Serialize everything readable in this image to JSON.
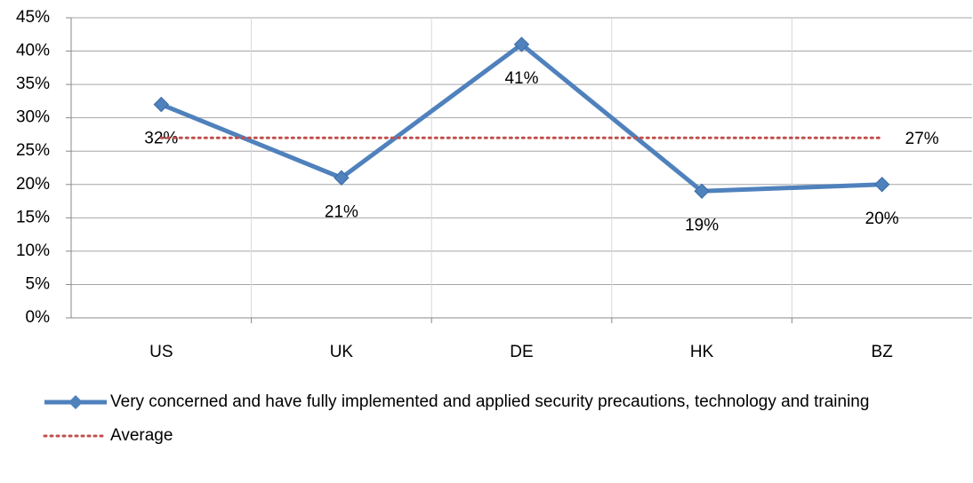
{
  "chart_data": {
    "type": "line",
    "categories": [
      "US",
      "UK",
      "DE",
      "HK",
      "BZ"
    ],
    "series": [
      {
        "name": "Very concerned and have fully implemented and applied security precautions, technology and training",
        "color": "#4f81bd",
        "values": [
          32,
          21,
          41,
          19,
          20
        ],
        "value_labels": [
          "32%",
          "21%",
          "41%",
          "19%",
          "20%"
        ],
        "marker": "diamond"
      },
      {
        "name": "Average",
        "color": "#c0504d",
        "values": [
          27,
          27,
          27,
          27,
          27
        ],
        "value_labels": [
          null,
          null,
          null,
          null,
          "27%"
        ],
        "dashed": true
      }
    ],
    "ylim": [
      0,
      45
    ],
    "yticks": [
      {
        "value": 0,
        "label": "0%"
      },
      {
        "value": 5,
        "label": "5%"
      },
      {
        "value": 10,
        "label": "10%"
      },
      {
        "value": 15,
        "label": "15%"
      },
      {
        "value": 20,
        "label": "20%"
      },
      {
        "value": 25,
        "label": "25%"
      },
      {
        "value": 30,
        "label": "30%"
      },
      {
        "value": 35,
        "label": "35%"
      },
      {
        "value": 40,
        "label": "40%"
      },
      {
        "value": 45,
        "label": "45%"
      }
    ],
    "grid": true
  }
}
